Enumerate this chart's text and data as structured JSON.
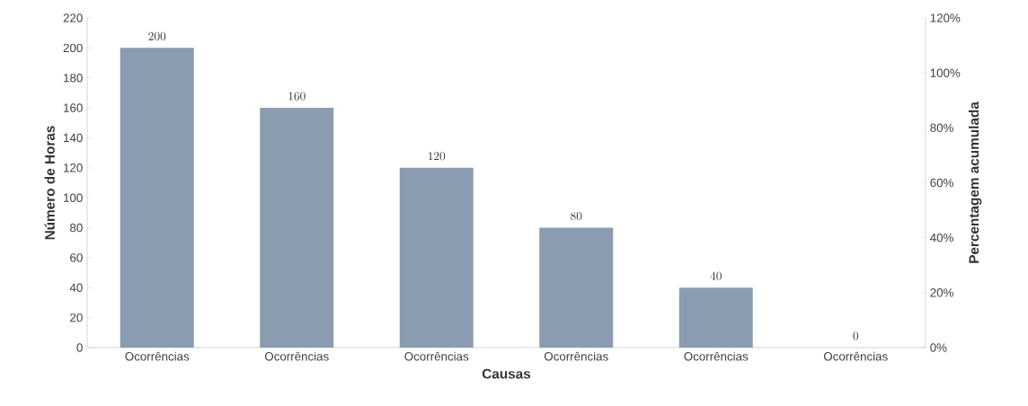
{
  "chart_data": {
    "type": "bar",
    "xlabel": "Causas",
    "ylabel": "Número de Horas",
    "y2label": "Percentagem acumulada",
    "categories": [
      "Ocorrências",
      "Ocorrências",
      "Ocorrências",
      "Ocorrências",
      "Ocorrências",
      "Ocorrências"
    ],
    "values": [
      200,
      160,
      120,
      80,
      40,
      0
    ],
    "color": "#8b9cb1",
    "data_labels": true,
    "ylim": [
      0,
      220
    ],
    "yticks": [
      0,
      20,
      40,
      60,
      80,
      100,
      120,
      140,
      160,
      180,
      200,
      220
    ],
    "y2lim": [
      0,
      120
    ],
    "y2ticks": [
      {
        "value": 0,
        "label": "0%"
      },
      {
        "value": 20,
        "label": "20%"
      },
      {
        "value": 40,
        "label": "40%"
      },
      {
        "value": 60,
        "label": "60%"
      },
      {
        "value": 80,
        "label": "80%"
      },
      {
        "value": 100,
        "label": "100%"
      },
      {
        "value": 120,
        "label": "120%"
      }
    ]
  }
}
